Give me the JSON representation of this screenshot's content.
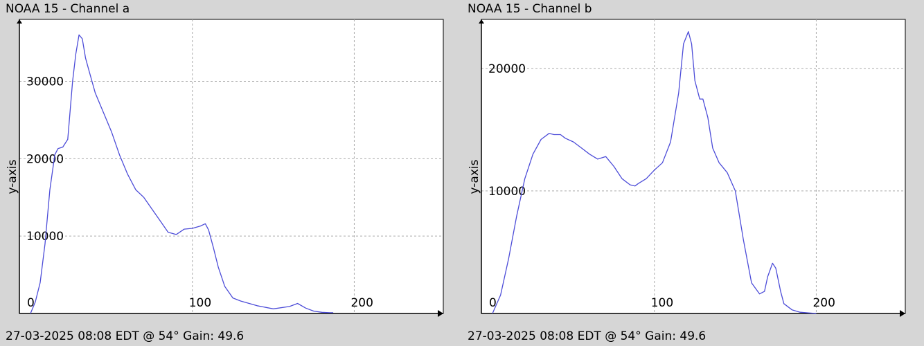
{
  "colors": {
    "background": "#d6d6d6",
    "plot_background": "#ffffff",
    "series": "#4c4cd8",
    "grid": "#aaaaaa",
    "axis": "#000000"
  },
  "panels": [
    {
      "title": "NOAA 15 - Channel a",
      "footer": "27-03-2025 08:08 EDT @ 54° Gain: 49.6"
    },
    {
      "title": "NOAA 15 - Channel b",
      "footer": "27-03-2025 08:08 EDT @ 54° Gain: 49.6"
    }
  ],
  "chart_data": [
    {
      "type": "line",
      "title": "NOAA 15 - Channel a",
      "xlabel": "",
      "ylabel": "y-axis",
      "xlim": [
        0,
        255
      ],
      "ylim": [
        0,
        38000
      ],
      "xticks": [
        0,
        100,
        200
      ],
      "yticks": [
        10000,
        20000,
        30000
      ],
      "grid": true,
      "legend": "none",
      "series": [
        {
          "x": [
            0,
            3,
            6,
            9,
            12,
            15,
            17,
            20,
            23,
            26,
            28,
            30,
            32,
            34,
            36,
            38,
            40,
            45,
            50,
            55,
            60,
            65,
            70,
            75,
            80,
            85,
            90,
            95,
            100,
            105,
            108,
            110,
            113,
            116,
            120,
            125,
            130,
            140,
            150,
            160,
            165,
            170,
            175,
            180,
            185,
            187
          ],
          "y": [
            0,
            1500,
            4000,
            9000,
            16000,
            20500,
            21300,
            21500,
            22500,
            30000,
            33500,
            36000,
            35500,
            33000,
            31500,
            30000,
            28500,
            26000,
            23500,
            20500,
            18000,
            16000,
            15000,
            13500,
            12000,
            10500,
            10200,
            10900,
            11000,
            11300,
            11600,
            10800,
            8500,
            6000,
            3500,
            2000,
            1600,
            1000,
            600,
            900,
            1300,
            700,
            300,
            150,
            100,
            100
          ]
        }
      ]
    },
    {
      "type": "line",
      "title": "NOAA 15 - Channel b",
      "xlabel": "",
      "ylabel": "y-axis",
      "xlim": [
        0,
        255
      ],
      "ylim": [
        0,
        24000
      ],
      "xticks": [
        0,
        100,
        200
      ],
      "yticks": [
        10000,
        20000
      ],
      "grid": true,
      "legend": "none",
      "series": [
        {
          "x": [
            0,
            5,
            10,
            15,
            20,
            25,
            30,
            35,
            38,
            42,
            45,
            50,
            55,
            60,
            65,
            70,
            75,
            80,
            85,
            88,
            90,
            95,
            100,
            105,
            110,
            115,
            118,
            121,
            123,
            125,
            128,
            130,
            133,
            136,
            140,
            145,
            150,
            155,
            160,
            165,
            168,
            170,
            173,
            175,
            178,
            180,
            185,
            190,
            195,
            200
          ],
          "y": [
            0,
            1500,
            4500,
            8000,
            11000,
            13000,
            14200,
            14700,
            14600,
            14600,
            14300,
            14000,
            13500,
            13000,
            12600,
            12800,
            12000,
            11000,
            10500,
            10400,
            10600,
            11000,
            11700,
            12300,
            14000,
            18000,
            22000,
            23000,
            22000,
            19000,
            17500,
            17500,
            16000,
            13500,
            12300,
            11500,
            10000,
            6000,
            2500,
            1600,
            1800,
            3000,
            4100,
            3700,
            1800,
            800,
            300,
            100,
            50,
            0
          ]
        }
      ]
    }
  ]
}
